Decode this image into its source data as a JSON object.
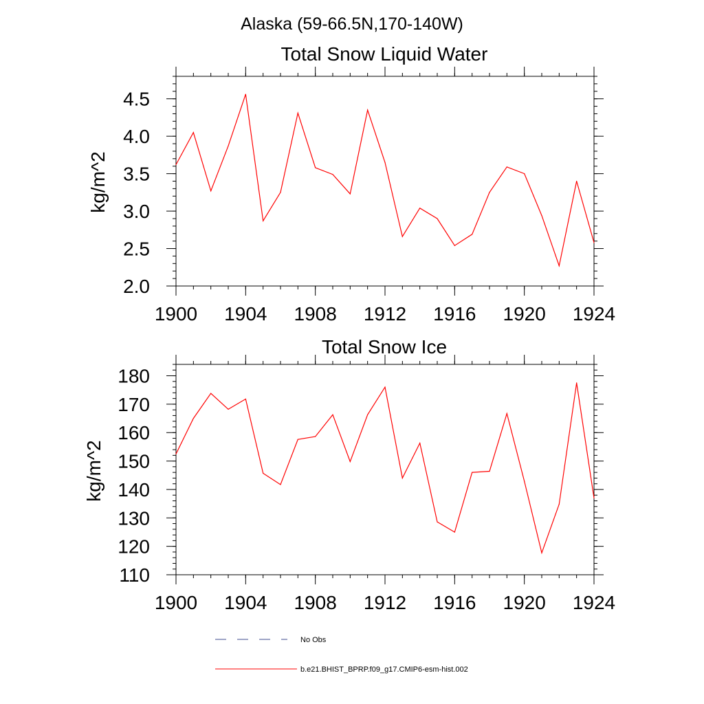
{
  "figure_title": "Alaska (59-66.5N,170-140W)",
  "colors": {
    "model_line": "#ff0000",
    "obs_line": "#3b4a8c",
    "axis": "#000000"
  },
  "legend": {
    "obs_label": "No Obs",
    "model_label": "b.e21.BHIST_BPRP.f09_g17.CMIP6-esm-hist.002"
  },
  "chart_data": [
    {
      "type": "line",
      "title": "Total Snow Liquid Water",
      "xlabel": "",
      "ylabel": "kg/m^2",
      "xlim": [
        1900,
        1924
      ],
      "ylim": [
        2.0,
        4.8
      ],
      "x_ticks": [
        1900,
        1904,
        1908,
        1912,
        1916,
        1920,
        1924
      ],
      "y_ticks": [
        "2.0",
        "2.5",
        "3.0",
        "3.5",
        "4.0",
        "4.5"
      ],
      "y_tick_values": [
        2.0,
        2.5,
        3.0,
        3.5,
        4.0,
        4.5
      ],
      "y_minor_step": 0.1,
      "series": [
        {
          "name": "b.e21.BHIST_BPRP.f09_g17.CMIP6-esm-hist.002",
          "x": [
            1900,
            1901,
            1902,
            1903,
            1904,
            1905,
            1906,
            1907,
            1908,
            1909,
            1910,
            1911,
            1912,
            1913,
            1914,
            1915,
            1916,
            1917,
            1918,
            1919,
            1920,
            1921,
            1922,
            1923,
            1924
          ],
          "values": [
            3.62,
            4.05,
            3.27,
            3.87,
            4.56,
            2.87,
            3.25,
            4.31,
            3.58,
            3.49,
            3.23,
            4.35,
            3.65,
            2.66,
            3.04,
            2.9,
            2.54,
            2.69,
            3.25,
            3.59,
            3.5,
            2.94,
            2.27,
            3.4,
            2.58
          ]
        }
      ]
    },
    {
      "type": "line",
      "title": "Total Snow Ice",
      "xlabel": "",
      "ylabel": "kg/m^2",
      "xlim": [
        1900,
        1924
      ],
      "ylim": [
        110,
        184
      ],
      "x_ticks": [
        1900,
        1904,
        1908,
        1912,
        1916,
        1920,
        1924
      ],
      "y_ticks": [
        "110",
        "120",
        "130",
        "140",
        "150",
        "160",
        "170",
        "180"
      ],
      "y_tick_values": [
        110,
        120,
        130,
        140,
        150,
        160,
        170,
        180
      ],
      "y_minor_step": 2,
      "series": [
        {
          "name": "b.e21.BHIST_BPRP.f09_g17.CMIP6-esm-hist.002",
          "x": [
            1900,
            1901,
            1902,
            1903,
            1904,
            1905,
            1906,
            1907,
            1908,
            1909,
            1910,
            1911,
            1912,
            1913,
            1914,
            1915,
            1916,
            1917,
            1918,
            1919,
            1920,
            1921,
            1922,
            1923,
            1924
          ],
          "values": [
            152.5,
            165.0,
            173.8,
            168.2,
            171.8,
            145.7,
            141.7,
            157.6,
            158.6,
            166.3,
            149.8,
            166.3,
            176.0,
            144.0,
            156.3,
            128.6,
            125.0,
            146.0,
            146.4,
            166.7,
            142.9,
            117.7,
            134.8,
            177.5,
            137.0
          ]
        }
      ]
    }
  ]
}
